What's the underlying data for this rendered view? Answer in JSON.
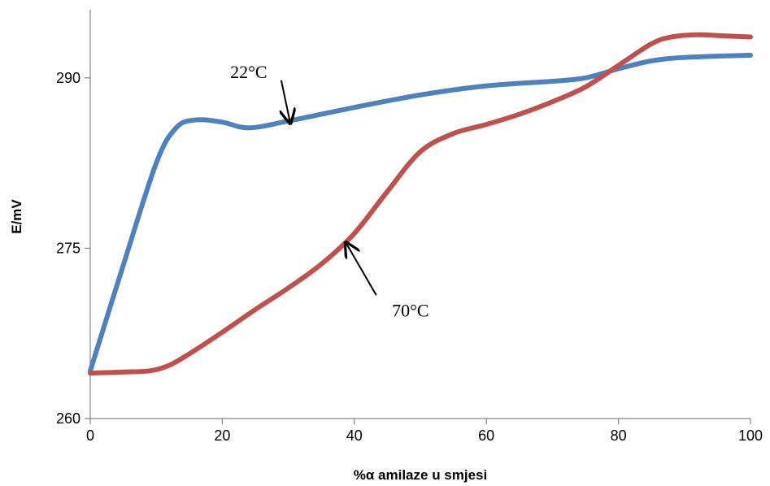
{
  "chart_data": {
    "type": "line",
    "xlabel": "%α amilaze u smjesi",
    "ylabel": "E/mV",
    "xlim": [
      0,
      100
    ],
    "ylim": [
      260,
      296
    ],
    "x_ticks": [
      0,
      20,
      40,
      60,
      80,
      100
    ],
    "y_ticks": [
      260,
      275,
      290
    ],
    "grid": false,
    "series": [
      {
        "color": "#4F81BD",
        "x": [
          0,
          5,
          10,
          13,
          16,
          20,
          24,
          30,
          40,
          50,
          60,
          70,
          75,
          80,
          85,
          90,
          100
        ],
        "y": [
          264.2,
          273.5,
          282.5,
          285.6,
          286.3,
          286.1,
          285.6,
          286.2,
          287.4,
          288.5,
          289.3,
          289.7,
          290.0,
          290.8,
          291.5,
          291.8,
          292.0
        ]
      },
      {
        "color": "#C0504D",
        "x": [
          0,
          5,
          9,
          12,
          15,
          20,
          25,
          30,
          35,
          40,
          45,
          50,
          55,
          60,
          65,
          70,
          75,
          80,
          85,
          88,
          92,
          96,
          100
        ],
        "y": [
          264.0,
          264.1,
          264.2,
          264.7,
          265.7,
          267.6,
          269.6,
          271.5,
          273.6,
          276.3,
          280.0,
          283.5,
          285.1,
          285.9,
          286.8,
          287.9,
          289.2,
          291.1,
          293.0,
          293.6,
          293.8,
          293.7,
          293.6
        ]
      }
    ],
    "annotations": [
      {
        "text": "22°C",
        "x": 24,
        "y": 290,
        "arrow_to": [
          30.3,
          286.0
        ]
      },
      {
        "text": "70°C",
        "x": 48.5,
        "y": 269.0,
        "arrow_to": [
          38.7,
          275.5
        ]
      }
    ]
  }
}
